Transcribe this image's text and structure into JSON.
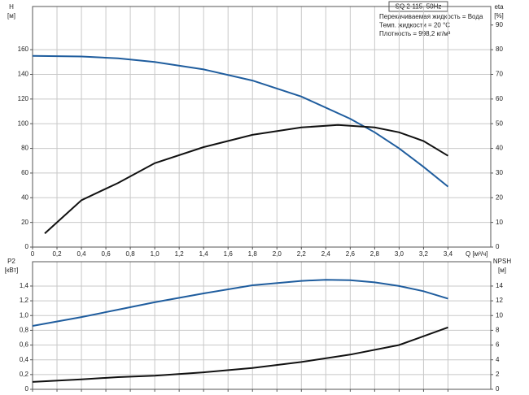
{
  "chart_data": [
    {
      "type": "line",
      "title": "SQ 2-115, 50Hz",
      "annotations": [
        "Перекачиваемая жидкость = Вода",
        "Темп. жидкости = 20 °C",
        "Плотность = 998,2 кг/м³"
      ],
      "xlabel": "Q [м³/ч]",
      "ylabel": "H",
      "ylabel_unit": "[м]",
      "y2label": "eta",
      "y2label_unit": "[%]",
      "xlim": [
        0,
        3.75
      ],
      "xticks": [
        0,
        {
          "value": 0.2,
          "label": "0,2"
        },
        {
          "value": 0.4,
          "label": "0,4"
        },
        {
          "value": 0.6,
          "label": "0,6"
        },
        {
          "value": 0.8,
          "label": "0,8"
        },
        {
          "value": 1.0,
          "label": "1,0"
        },
        {
          "value": 1.2,
          "label": "1,2"
        },
        {
          "value": 1.4,
          "label": "1,4"
        },
        {
          "value": 1.6,
          "label": "1,6"
        },
        {
          "value": 1.8,
          "label": "1,8"
        },
        {
          "value": 2.0,
          "label": "2,0"
        },
        {
          "value": 2.2,
          "label": "2,2"
        },
        {
          "value": 2.4,
          "label": "2,4"
        },
        {
          "value": 2.6,
          "label": "2,6"
        },
        {
          "value": 2.8,
          "label": "2,8"
        },
        {
          "value": 3.0,
          "label": "3,0"
        },
        {
          "value": 3.2,
          "label": "3,2"
        },
        {
          "value": 3.4,
          "label": "3,4"
        }
      ],
      "ylim": [
        0,
        195
      ],
      "yticks": [
        0,
        20,
        40,
        60,
        80,
        100,
        120,
        140,
        160
      ],
      "y2lim": [
        0,
        97.5
      ],
      "y2ticks": [
        0,
        10,
        20,
        30,
        40,
        50,
        60,
        70,
        80,
        90
      ],
      "grid": true,
      "series": [
        {
          "color": "#1f5d9e",
          "x": [
            0,
            0.4,
            0.7,
            1.0,
            1.4,
            1.8,
            2.2,
            2.6,
            2.8,
            3.0,
            3.2,
            3.4
          ],
          "values": [
            155,
            154.5,
            153,
            150,
            144,
            135,
            122,
            104,
            93,
            80,
            65,
            49
          ]
        },
        {
          "color": "#111111",
          "axis": "y2",
          "x": [
            0.1,
            0.4,
            0.7,
            1.0,
            1.4,
            1.8,
            2.2,
            2.5,
            2.8,
            3.0,
            3.2,
            3.4
          ],
          "values": [
            5.5,
            19,
            26,
            34,
            40.5,
            45.5,
            48.5,
            49.5,
            48.5,
            46.5,
            43,
            37
          ]
        }
      ]
    },
    {
      "type": "line",
      "ylabel": "P2",
      "ylabel_unit": "[кВт]",
      "y2label": "NPSH",
      "y2label_unit": "[м]",
      "xlim": [
        0,
        3.75
      ],
      "ylim": [
        0,
        1.73
      ],
      "yticks": [
        0,
        {
          "value": 0.2,
          "label": "0,2"
        },
        {
          "value": 0.4,
          "label": "0,4"
        },
        {
          "value": 0.6,
          "label": "0,6"
        },
        {
          "value": 0.8,
          "label": "0,8"
        },
        {
          "value": 1.0,
          "label": "1,0"
        },
        {
          "value": 1.2,
          "label": "1,2"
        },
        {
          "value": 1.4,
          "label": "1,4"
        }
      ],
      "y2lim": [
        0,
        17.3
      ],
      "y2ticks": [
        0,
        2,
        4,
        6,
        8,
        10,
        12,
        14
      ],
      "grid": true,
      "series": [
        {
          "color": "#1f5d9e",
          "x": [
            0,
            0.4,
            0.7,
            1.0,
            1.4,
            1.8,
            2.2,
            2.4,
            2.6,
            2.8,
            3.0,
            3.2,
            3.4
          ],
          "values": [
            0.86,
            0.98,
            1.08,
            1.18,
            1.3,
            1.41,
            1.47,
            1.485,
            1.48,
            1.45,
            1.4,
            1.33,
            1.23
          ]
        },
        {
          "color": "#111111",
          "axis": "y2",
          "x": [
            0,
            0.4,
            0.7,
            1.0,
            1.4,
            1.8,
            2.2,
            2.6,
            3.0,
            3.2,
            3.4
          ],
          "values": [
            1.0,
            1.35,
            1.65,
            1.85,
            2.3,
            2.9,
            3.7,
            4.7,
            6.0,
            7.2,
            8.4
          ]
        }
      ]
    }
  ]
}
